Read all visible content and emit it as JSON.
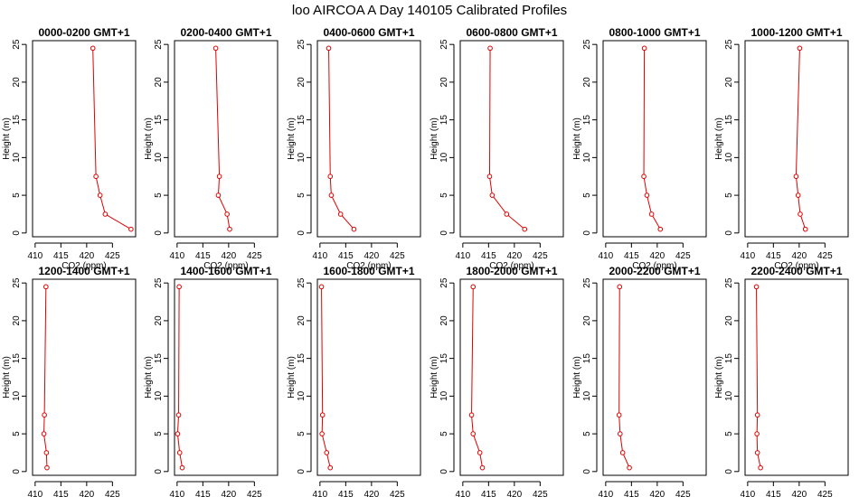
{
  "page_title": "loo AIRCOA A  Day 140105  Calibrated Profiles",
  "chart_data": {
    "type": "line",
    "xlabel": "CO2 (ppm)",
    "ylabel": "Height (m)",
    "xlim": [
      409.5,
      429.5
    ],
    "ylim": [
      -0.5,
      25.5
    ],
    "xticks": [
      410,
      415,
      420,
      425
    ],
    "yticks": [
      0,
      5,
      10,
      15,
      20,
      25
    ],
    "heights": [
      0.5,
      2.5,
      5,
      7.5,
      24.5
    ],
    "series_color": "#e00000",
    "grid": false,
    "panels": [
      {
        "title": "0000-0200 GMT+1",
        "co2": [
          428.6,
          423.6,
          422.6,
          421.8,
          421.2
        ]
      },
      {
        "title": "0200-0400 GMT+1",
        "co2": [
          420.2,
          419.7,
          418.0,
          418.2,
          417.5
        ]
      },
      {
        "title": "0400-0600 GMT+1",
        "co2": [
          416.6,
          414.0,
          412.2,
          412.0,
          411.7
        ]
      },
      {
        "title": "0600-0800 GMT+1",
        "co2": [
          422.0,
          418.5,
          415.7,
          415.2,
          415.3
        ]
      },
      {
        "title": "0800-1000 GMT+1",
        "co2": [
          420.6,
          418.9,
          418.0,
          417.4,
          417.5
        ]
      },
      {
        "title": "1000-1200 GMT+1",
        "co2": [
          421.2,
          420.2,
          419.8,
          419.4,
          420.1
        ]
      },
      {
        "title": "1200-1400 GMT+1",
        "co2": [
          412.3,
          412.2,
          411.7,
          411.8,
          412.1
        ]
      },
      {
        "title": "1400-1600 GMT+1",
        "co2": [
          411.0,
          410.5,
          410.1,
          410.3,
          410.4
        ]
      },
      {
        "title": "1600-1800 GMT+1",
        "co2": [
          412.0,
          411.3,
          410.4,
          410.5,
          410.3
        ]
      },
      {
        "title": "1800-2000 GMT+1",
        "co2": [
          413.8,
          413.3,
          412.0,
          411.7,
          412.0
        ]
      },
      {
        "title": "2000-2200 GMT+1",
        "co2": [
          414.6,
          413.3,
          412.8,
          412.6,
          412.7
        ]
      },
      {
        "title": "2200-2400 GMT+1",
        "co2": [
          412.5,
          411.9,
          411.8,
          411.9,
          411.7
        ]
      }
    ]
  }
}
